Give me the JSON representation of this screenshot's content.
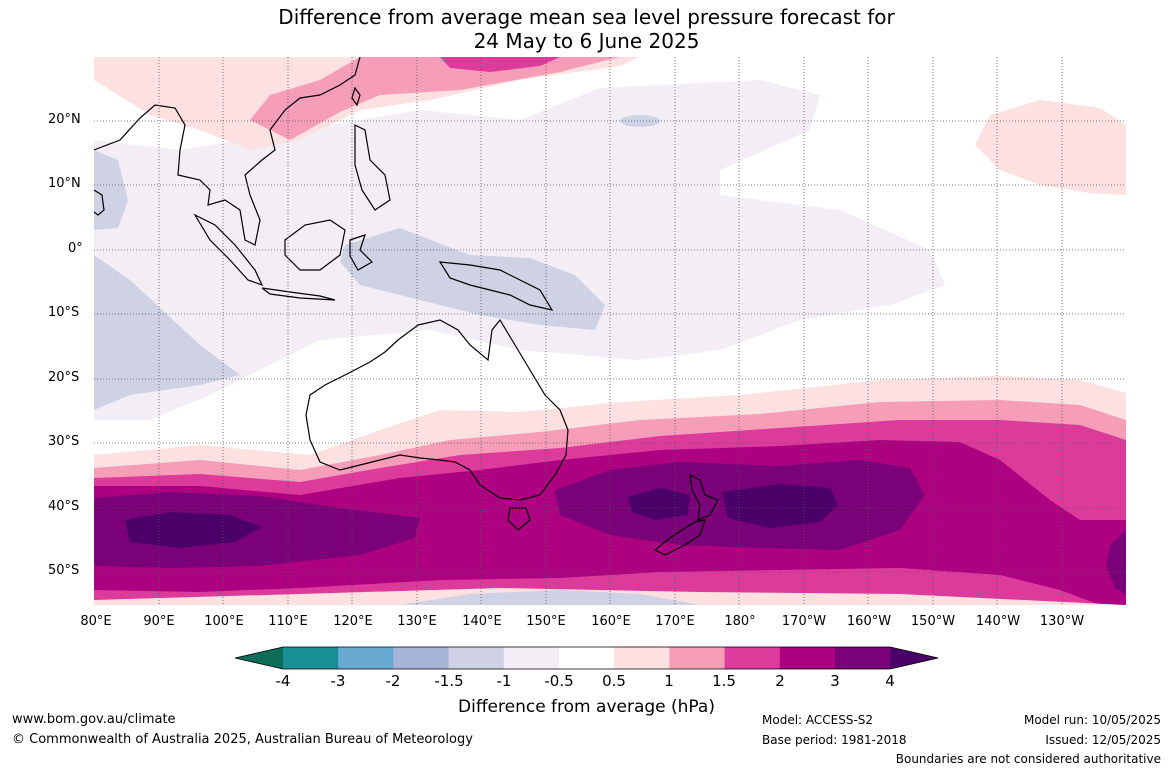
{
  "title": {
    "line1": "Difference from average mean sea level pressure forecast for",
    "line2": "24 May to 6 June 2025"
  },
  "map": {
    "lat_labels": [
      "20°N",
      "10°N",
      "0°",
      "10°S",
      "20°S",
      "30°S",
      "40°S",
      "50°S"
    ],
    "lon_labels": [
      "80°E",
      "90°E",
      "100°E",
      "110°E",
      "120°E",
      "130°E",
      "140°E",
      "150°E",
      "160°E",
      "170°E",
      "180°",
      "170°W",
      "160°W",
      "150°W",
      "140°W",
      "130°W"
    ]
  },
  "colorbar": {
    "labels": [
      "-4",
      "-3",
      "-2",
      "-1.5",
      "-1",
      "-0.5",
      "0.5",
      "1",
      "1.5",
      "2",
      "3",
      "4"
    ],
    "colors": [
      "#0e6c57",
      "#1b8f96",
      "#68a9d2",
      "#a7b5d7",
      "#cfd1e4",
      "#f3eef6",
      "#ffffff",
      "#fde0e0",
      "#f69eb8",
      "#dd3b9c",
      "#ae0182",
      "#7a0177",
      "#4a0068"
    ],
    "title": "Difference from average (hPa)"
  },
  "footer": {
    "url": "www.bom.gov.au/climate",
    "copyright": "© Commonwealth of Australia 2025, Australian Bureau of Meteorology",
    "model": "Model: ACCESS-S2",
    "base_period": "Base period: 1981-2018",
    "model_run": "Model run: 10/05/2025",
    "issued": "Issued: 12/05/2025",
    "disclaimer": "Boundaries are not considered authoritative"
  }
}
